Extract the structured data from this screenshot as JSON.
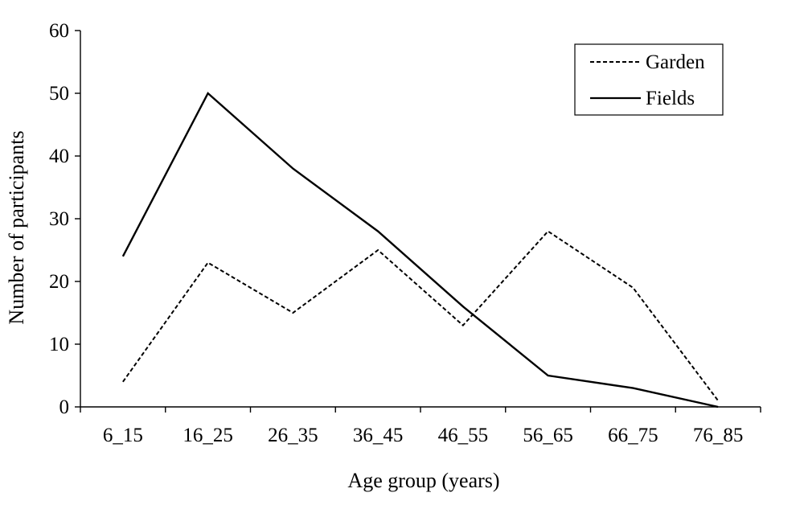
{
  "chart_data": {
    "type": "line",
    "title": "",
    "xlabel": "Age group (years)",
    "ylabel": "Number of participants",
    "categories": [
      "6_15",
      "16_25",
      "26_35",
      "36_45",
      "46_55",
      "56_65",
      "66_75",
      "76_85"
    ],
    "ylim": [
      0,
      60
    ],
    "yticks": [
      0,
      10,
      20,
      30,
      40,
      50,
      60
    ],
    "grid": false,
    "legend_position": "top-right",
    "series": [
      {
        "name": "Garden",
        "style": "dashed",
        "color": "#000000",
        "values": [
          4,
          23,
          15,
          25,
          13,
          28,
          19,
          1
        ]
      },
      {
        "name": "Fields",
        "style": "solid",
        "color": "#000000",
        "values": [
          24,
          50,
          38,
          28,
          16,
          5,
          3,
          0
        ]
      }
    ]
  }
}
